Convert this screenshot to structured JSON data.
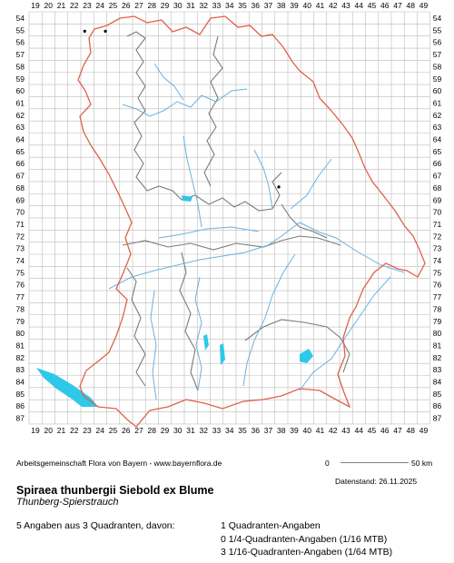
{
  "grid": {
    "x_labels": [
      "19",
      "20",
      "21",
      "22",
      "23",
      "24",
      "25",
      "26",
      "27",
      "28",
      "29",
      "30",
      "31",
      "32",
      "33",
      "34",
      "35",
      "36",
      "37",
      "38",
      "39",
      "40",
      "41",
      "42",
      "43",
      "44",
      "45",
      "46",
      "47",
      "48",
      "49"
    ],
    "y_labels": [
      "54",
      "55",
      "56",
      "57",
      "58",
      "59",
      "60",
      "61",
      "62",
      "63",
      "64",
      "65",
      "66",
      "67",
      "68",
      "69",
      "70",
      "71",
      "72",
      "73",
      "74",
      "75",
      "76",
      "77",
      "78",
      "79",
      "80",
      "81",
      "82",
      "83",
      "84",
      "85",
      "86",
      "87"
    ]
  },
  "occurrence_points": [
    {
      "col": "23",
      "row": "55",
      "kind": "1/16-Quadrant"
    },
    {
      "col": "24",
      "row": "55",
      "kind": "1/16-Quadrant"
    },
    {
      "col": "38",
      "row": "68",
      "kind": "1/16-Quadrant"
    }
  ],
  "colors": {
    "state_border": "#e0604a",
    "district_border": "#7a7a7a",
    "rivers": "#6bb2e0",
    "lakes": "#2ec8e8",
    "grid": "#bbbbbb",
    "points": "#000000"
  },
  "scale_bar": {
    "start": "0",
    "end": "50 km"
  },
  "credit": "Arbeitsgemeinschaft Flora von Bayern - www.bayernflora.de",
  "date_stamp": "Datenstand: 26.11.2025",
  "species": {
    "scientific_name": "Spiraea thunbergii Siebold ex Blume",
    "common_name": "Thunberg-Spierstrauch"
  },
  "summary": {
    "total": "5 Angaben aus 3 Quadranten, davon:",
    "lines": [
      "1 Quadranten-Angaben",
      "0 1/4-Quadranten-Angaben (1/16 MTB)",
      "3 1/16-Quadranten-Angaben (1/64 MTB)"
    ]
  }
}
